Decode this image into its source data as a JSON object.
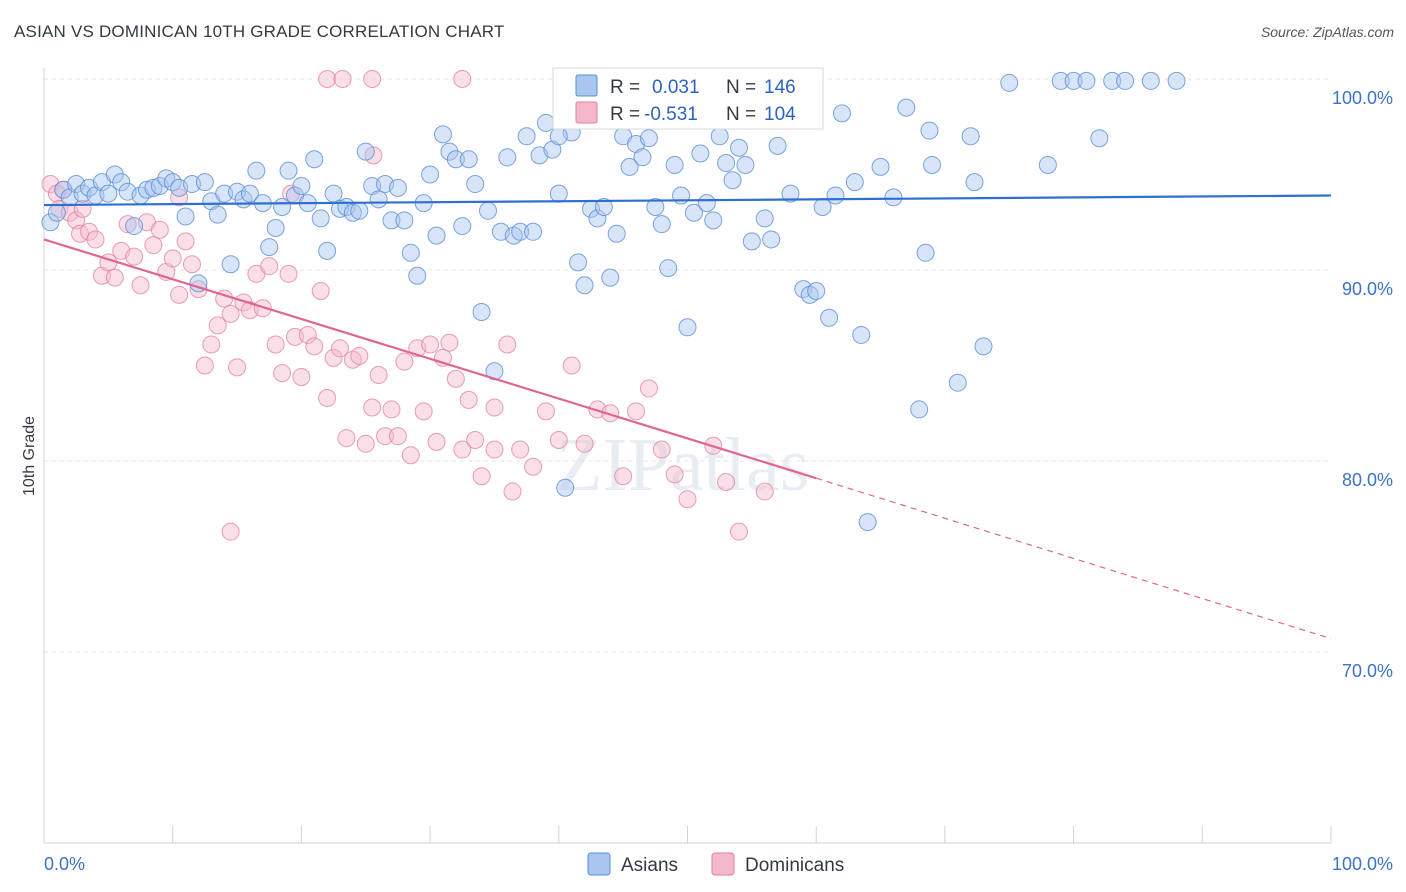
{
  "title": "ASIAN VS DOMINICAN 10TH GRADE CORRELATION CHART",
  "source": "Source: ZipAtlas.com",
  "watermark": "ZIPatlas",
  "colors": {
    "asian_fill": "#a9c6ef",
    "asian_stroke": "#5b8fd6",
    "asian_line": "#2f6fd0",
    "dominican_fill": "#f5b8cb",
    "dominican_stroke": "#e27f9f",
    "dominican_line": "#e0668e",
    "tick_label": "#3d72c4"
  },
  "legend": {
    "asian": {
      "r_label": "R =",
      "r_value": "0.031",
      "n_label": "N =",
      "n_value": "146"
    },
    "dominican": {
      "r_label": "R =",
      "r_value": "-0.531",
      "n_label": "N =",
      "n_value": "104"
    }
  },
  "chart_data": {
    "type": "scatter",
    "title": "ASIAN VS DOMINICAN 10TH GRADE CORRELATION CHART",
    "xlabel": "",
    "ylabel": "10th Grade",
    "xlim": [
      0,
      100
    ],
    "ylim": [
      60,
      100
    ],
    "x_tick_labels": [
      "0.0%",
      "100.0%"
    ],
    "y_ticks": [
      70,
      80,
      90,
      100
    ],
    "y_tick_labels": [
      "70.0%",
      "80.0%",
      "90.0%",
      "100.0%"
    ],
    "grid": true,
    "legend_position": "top-center",
    "series": [
      {
        "name": "Asians",
        "trend": {
          "x0": 0,
          "y0": 93.4,
          "x1": 100,
          "y1": 93.9
        },
        "points": [
          [
            0.5,
            92.5
          ],
          [
            1.0,
            93.0
          ],
          [
            1.5,
            94.2
          ],
          [
            2.0,
            93.8
          ],
          [
            2.5,
            94.5
          ],
          [
            3.0,
            94.0
          ],
          [
            3.5,
            94.3
          ],
          [
            4.0,
            93.9
          ],
          [
            4.5,
            94.6
          ],
          [
            5.0,
            94.0
          ],
          [
            5.5,
            95.0
          ],
          [
            6.0,
            94.6
          ],
          [
            6.5,
            94.1
          ],
          [
            7.0,
            92.3
          ],
          [
            7.5,
            93.9
          ],
          [
            8.0,
            94.2
          ],
          [
            8.5,
            94.3
          ],
          [
            9.0,
            94.4
          ],
          [
            9.5,
            94.8
          ],
          [
            10.0,
            94.6
          ],
          [
            10.5,
            94.3
          ],
          [
            11.0,
            92.8
          ],
          [
            11.5,
            94.5
          ],
          [
            12.0,
            89.3
          ],
          [
            12.5,
            94.6
          ],
          [
            13.0,
            93.6
          ],
          [
            13.5,
            92.9
          ],
          [
            14.0,
            94.0
          ],
          [
            14.5,
            90.3
          ],
          [
            15.0,
            94.1
          ],
          [
            15.5,
            93.7
          ],
          [
            16.0,
            94.0
          ],
          [
            16.5,
            95.2
          ],
          [
            17.0,
            93.5
          ],
          [
            17.5,
            91.2
          ],
          [
            18.0,
            92.2
          ],
          [
            18.5,
            93.3
          ],
          [
            19.0,
            95.2
          ],
          [
            19.5,
            93.9
          ],
          [
            20.0,
            94.4
          ],
          [
            20.5,
            93.5
          ],
          [
            21.0,
            95.8
          ],
          [
            21.5,
            92.7
          ],
          [
            22.0,
            91.0
          ],
          [
            22.5,
            94.0
          ],
          [
            23.0,
            93.2
          ],
          [
            23.5,
            93.3
          ],
          [
            24.0,
            93.0
          ],
          [
            24.5,
            93.1
          ],
          [
            25.0,
            96.2
          ],
          [
            25.5,
            94.4
          ],
          [
            26.0,
            93.7
          ],
          [
            26.5,
            94.5
          ],
          [
            27.0,
            92.6
          ],
          [
            27.5,
            94.3
          ],
          [
            28.0,
            92.6
          ],
          [
            28.5,
            90.9
          ],
          [
            29.0,
            89.7
          ],
          [
            29.5,
            93.5
          ],
          [
            30.0,
            95.0
          ],
          [
            30.5,
            91.8
          ],
          [
            31.0,
            97.1
          ],
          [
            31.5,
            96.2
          ],
          [
            32.0,
            95.8
          ],
          [
            32.5,
            92.3
          ],
          [
            33.0,
            95.8
          ],
          [
            33.5,
            94.5
          ],
          [
            34.0,
            87.8
          ],
          [
            34.5,
            93.1
          ],
          [
            35.0,
            84.7
          ],
          [
            35.5,
            92.0
          ],
          [
            36.0,
            95.9
          ],
          [
            36.5,
            91.8
          ],
          [
            37.0,
            92.0
          ],
          [
            37.5,
            97.0
          ],
          [
            38.0,
            92.0
          ],
          [
            38.5,
            96.0
          ],
          [
            39.0,
            97.7
          ],
          [
            39.5,
            96.3
          ],
          [
            40.0,
            94.0
          ],
          [
            40.5,
            78.6
          ],
          [
            41.0,
            97.2
          ],
          [
            41.5,
            90.4
          ],
          [
            42.0,
            89.2
          ],
          [
            42.5,
            93.2
          ],
          [
            43.0,
            92.7
          ],
          [
            43.5,
            93.3
          ],
          [
            44.0,
            89.6
          ],
          [
            44.5,
            91.9
          ],
          [
            45.0,
            97.0
          ],
          [
            45.5,
            95.4
          ],
          [
            46.0,
            96.6
          ],
          [
            46.5,
            95.9
          ],
          [
            47.0,
            96.9
          ],
          [
            47.5,
            93.3
          ],
          [
            48.0,
            92.4
          ],
          [
            48.5,
            90.1
          ],
          [
            49.0,
            95.5
          ],
          [
            49.5,
            93.9
          ],
          [
            50.0,
            87.0
          ],
          [
            50.5,
            93.0
          ],
          [
            51.0,
            96.1
          ],
          [
            51.5,
            93.5
          ],
          [
            52.0,
            92.6
          ],
          [
            52.5,
            97.0
          ],
          [
            53.0,
            95.6
          ],
          [
            53.5,
            94.7
          ],
          [
            54.0,
            96.4
          ],
          [
            54.5,
            95.5
          ],
          [
            55.0,
            91.5
          ],
          [
            56.0,
            92.7
          ],
          [
            56.5,
            91.6
          ],
          [
            57.0,
            96.5
          ],
          [
            58.0,
            94.0
          ],
          [
            59.0,
            89.0
          ],
          [
            59.5,
            88.7
          ],
          [
            60.0,
            88.9
          ],
          [
            60.5,
            93.3
          ],
          [
            61.0,
            87.5
          ],
          [
            61.5,
            93.9
          ],
          [
            62.0,
            98.2
          ],
          [
            63.0,
            94.6
          ],
          [
            63.5,
            86.6
          ],
          [
            64.0,
            76.8
          ],
          [
            65.0,
            95.4
          ],
          [
            66.0,
            93.8
          ],
          [
            67.0,
            98.5
          ],
          [
            68.0,
            82.7
          ],
          [
            68.5,
            90.9
          ],
          [
            68.8,
            97.3
          ],
          [
            69.0,
            95.5
          ],
          [
            71.0,
            84.1
          ],
          [
            72.0,
            97.0
          ],
          [
            72.3,
            94.6
          ],
          [
            73.0,
            86.0
          ],
          [
            75.0,
            99.8
          ],
          [
            78.0,
            95.5
          ],
          [
            79.0,
            99.9
          ],
          [
            80.0,
            99.9
          ],
          [
            81.0,
            99.9
          ],
          [
            82.0,
            96.9
          ],
          [
            83.0,
            99.9
          ],
          [
            84.0,
            99.9
          ],
          [
            86.0,
            99.9
          ],
          [
            88.0,
            99.9
          ],
          [
            40.0,
            97.0
          ],
          [
            51.5,
            99.0
          ],
          [
            55.5,
            99.0
          ],
          [
            43.0,
            98.6
          ],
          [
            47.0,
            98.0
          ]
        ]
      },
      {
        "name": "Dominicans",
        "trend": {
          "x0": 0,
          "y0": 91.6,
          "x1": 60,
          "y1": 79.1,
          "dashed_to_x": 100,
          "dashed_to_y": 70.7
        },
        "points": [
          [
            0.5,
            94.5
          ],
          [
            1.0,
            94.0
          ],
          [
            1.2,
            93.2
          ],
          [
            1.5,
            94.2
          ],
          [
            2.0,
            93.0
          ],
          [
            2.5,
            92.6
          ],
          [
            2.8,
            91.9
          ],
          [
            3.0,
            93.2
          ],
          [
            3.5,
            92.0
          ],
          [
            4.0,
            91.6
          ],
          [
            4.5,
            89.7
          ],
          [
            5.0,
            90.4
          ],
          [
            5.5,
            89.6
          ],
          [
            6.0,
            91.0
          ],
          [
            6.5,
            92.4
          ],
          [
            7.0,
            90.7
          ],
          [
            7.5,
            89.2
          ],
          [
            8.0,
            92.5
          ],
          [
            8.5,
            91.3
          ],
          [
            9.0,
            92.1
          ],
          [
            9.5,
            89.9
          ],
          [
            10.0,
            90.6
          ],
          [
            10.5,
            88.7
          ],
          [
            11.0,
            91.5
          ],
          [
            11.5,
            90.3
          ],
          [
            12.0,
            89.0
          ],
          [
            12.5,
            85.0
          ],
          [
            13.0,
            86.1
          ],
          [
            13.5,
            87.1
          ],
          [
            14.0,
            88.5
          ],
          [
            14.5,
            87.7
          ],
          [
            15.0,
            84.9
          ],
          [
            15.5,
            88.3
          ],
          [
            16.0,
            87.9
          ],
          [
            16.5,
            89.8
          ],
          [
            17.0,
            88.0
          ],
          [
            17.5,
            90.2
          ],
          [
            18.0,
            86.1
          ],
          [
            18.5,
            84.6
          ],
          [
            19.0,
            89.8
          ],
          [
            19.5,
            86.5
          ],
          [
            20.0,
            84.4
          ],
          [
            20.5,
            86.6
          ],
          [
            21.0,
            86.0
          ],
          [
            21.5,
            88.9
          ],
          [
            22.0,
            83.3
          ],
          [
            22.5,
            85.4
          ],
          [
            23.0,
            85.9
          ],
          [
            23.5,
            81.2
          ],
          [
            24.0,
            85.3
          ],
          [
            24.5,
            85.5
          ],
          [
            25.0,
            80.9
          ],
          [
            25.5,
            82.8
          ],
          [
            26.0,
            84.5
          ],
          [
            26.5,
            81.3
          ],
          [
            27.0,
            82.7
          ],
          [
            27.5,
            81.3
          ],
          [
            28.0,
            85.2
          ],
          [
            28.5,
            80.3
          ],
          [
            29.0,
            85.9
          ],
          [
            29.5,
            82.6
          ],
          [
            30.0,
            86.1
          ],
          [
            30.5,
            81.0
          ],
          [
            31.0,
            85.4
          ],
          [
            31.5,
            86.2
          ],
          [
            32.0,
            84.3
          ],
          [
            32.5,
            80.6
          ],
          [
            33.0,
            83.2
          ],
          [
            33.5,
            81.1
          ],
          [
            34.0,
            79.2
          ],
          [
            35.0,
            80.6
          ],
          [
            36.0,
            86.1
          ],
          [
            37.0,
            80.6
          ],
          [
            38.0,
            79.7
          ],
          [
            39.0,
            82.6
          ],
          [
            40.0,
            81.1
          ],
          [
            41.0,
            85.0
          ],
          [
            42.0,
            80.9
          ],
          [
            43.0,
            82.7
          ],
          [
            44.0,
            82.5
          ],
          [
            45.0,
            79.2
          ],
          [
            46.0,
            82.6
          ],
          [
            47.0,
            83.8
          ],
          [
            48.0,
            80.6
          ],
          [
            49.0,
            79.3
          ],
          [
            50.0,
            78.0
          ],
          [
            52.0,
            80.8
          ],
          [
            53.0,
            78.9
          ],
          [
            54.0,
            76.3
          ],
          [
            56.0,
            78.4
          ],
          [
            10.5,
            93.8
          ],
          [
            14.5,
            76.3
          ],
          [
            22.0,
            100.0
          ],
          [
            23.2,
            100.0
          ],
          [
            25.5,
            100.0
          ],
          [
            32.5,
            100.0
          ],
          [
            25.6,
            96.0
          ],
          [
            19.2,
            94.0
          ],
          [
            35.0,
            82.8
          ],
          [
            36.4,
            78.4
          ]
        ]
      }
    ]
  },
  "bottom_legend": {
    "asian_label": "Asians",
    "dominican_label": "Dominicans"
  }
}
